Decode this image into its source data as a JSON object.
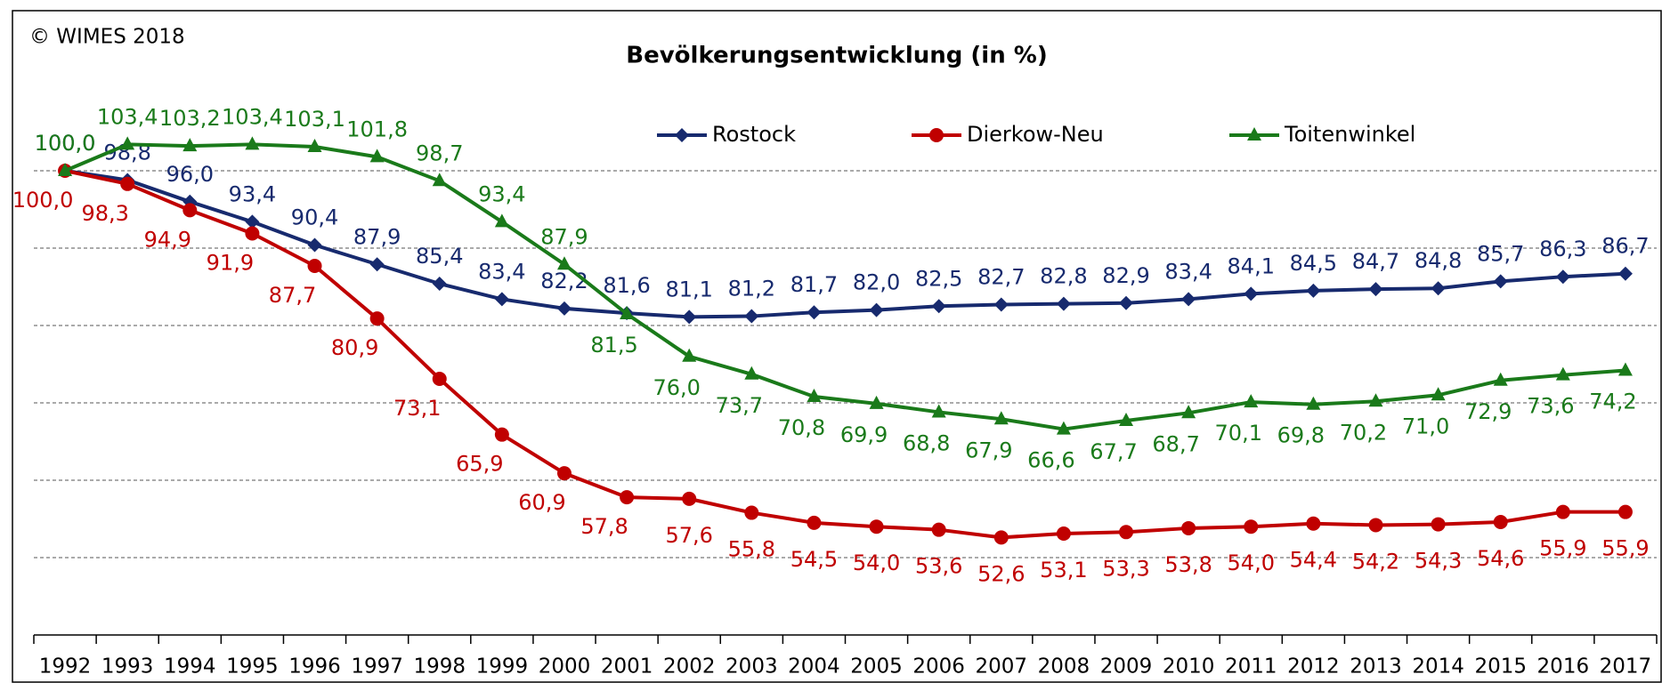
{
  "chart_data": {
    "type": "line",
    "title": "Bevölkerungsentwicklung (in %)",
    "copyright": "© WIMES 2018",
    "categories": [
      "1992",
      "1993",
      "1994",
      "1995",
      "1996",
      "1997",
      "1998",
      "1999",
      "2000",
      "2001",
      "2002",
      "2003",
      "2004",
      "2005",
      "2006",
      "2007",
      "2008",
      "2009",
      "2010",
      "2011",
      "2012",
      "2013",
      "2014",
      "2015",
      "2016",
      "2017"
    ],
    "ylim": [
      40,
      110
    ],
    "yticks": [
      50,
      60,
      70,
      80,
      90,
      100
    ],
    "grid": true,
    "series": [
      {
        "name": "Rostock",
        "color": "#172a6e",
        "marker": "diamond",
        "values": [
          100.0,
          98.8,
          96.0,
          93.4,
          90.4,
          87.9,
          85.4,
          83.4,
          82.2,
          81.6,
          81.1,
          81.2,
          81.7,
          82.0,
          82.5,
          82.7,
          82.8,
          82.9,
          83.4,
          84.1,
          84.5,
          84.7,
          84.8,
          85.7,
          86.3,
          86.7
        ],
        "value_labels": [
          "100,0",
          "98,8",
          "96,0",
          "93,4",
          "90,4",
          "87,9",
          "85,4",
          "83,4",
          "82,2",
          "81,6",
          "81,1",
          "81,2",
          "81,7",
          "82,0",
          "82,5",
          "82,7",
          "82,8",
          "82,9",
          "83,4",
          "84,1",
          "84,5",
          "84,7",
          "84,8",
          "85,7",
          "86,3",
          "86,7"
        ]
      },
      {
        "name": "Dierkow-Neu",
        "color": "#c00000",
        "marker": "circle",
        "values": [
          100.0,
          98.3,
          94.9,
          91.9,
          87.7,
          80.9,
          73.1,
          65.9,
          60.9,
          57.8,
          57.6,
          55.8,
          54.5,
          54.0,
          53.6,
          52.6,
          53.1,
          53.3,
          53.8,
          54.0,
          54.4,
          54.2,
          54.3,
          54.6,
          55.9,
          55.9
        ],
        "value_labels": [
          "100,0",
          "98,3",
          "94,9",
          "91,9",
          "87,7",
          "80,9",
          "73,1",
          "65,9",
          "60,9",
          "57,8",
          "57,6",
          "55,8",
          "54,5",
          "54,0",
          "53,6",
          "52,6",
          "53,1",
          "53,3",
          "53,8",
          "54,0",
          "54,4",
          "54,2",
          "54,3",
          "54,6",
          "55,9",
          "55,9"
        ]
      },
      {
        "name": "Toitenwinkel",
        "color": "#1a7a1a",
        "marker": "triangle",
        "values": [
          100.0,
          103.4,
          103.2,
          103.4,
          103.1,
          101.8,
          98.7,
          93.4,
          87.9,
          81.5,
          76.0,
          73.7,
          70.8,
          69.9,
          68.8,
          67.9,
          66.6,
          67.7,
          68.7,
          70.1,
          69.8,
          70.2,
          71.0,
          72.9,
          73.6,
          74.2
        ],
        "value_labels": [
          "100,0",
          "103,4",
          "103,2",
          "103,4",
          "103,1",
          "101,8",
          "98,7",
          "93,4",
          "87,9",
          "81,5",
          "76,0",
          "73,7",
          "70,8",
          "69,9",
          "68,8",
          "67,9",
          "66,6",
          "67,7",
          "68,7",
          "70,1",
          "69,8",
          "70,2",
          "71,0",
          "72,9",
          "73,6",
          "74,2"
        ]
      }
    ]
  }
}
